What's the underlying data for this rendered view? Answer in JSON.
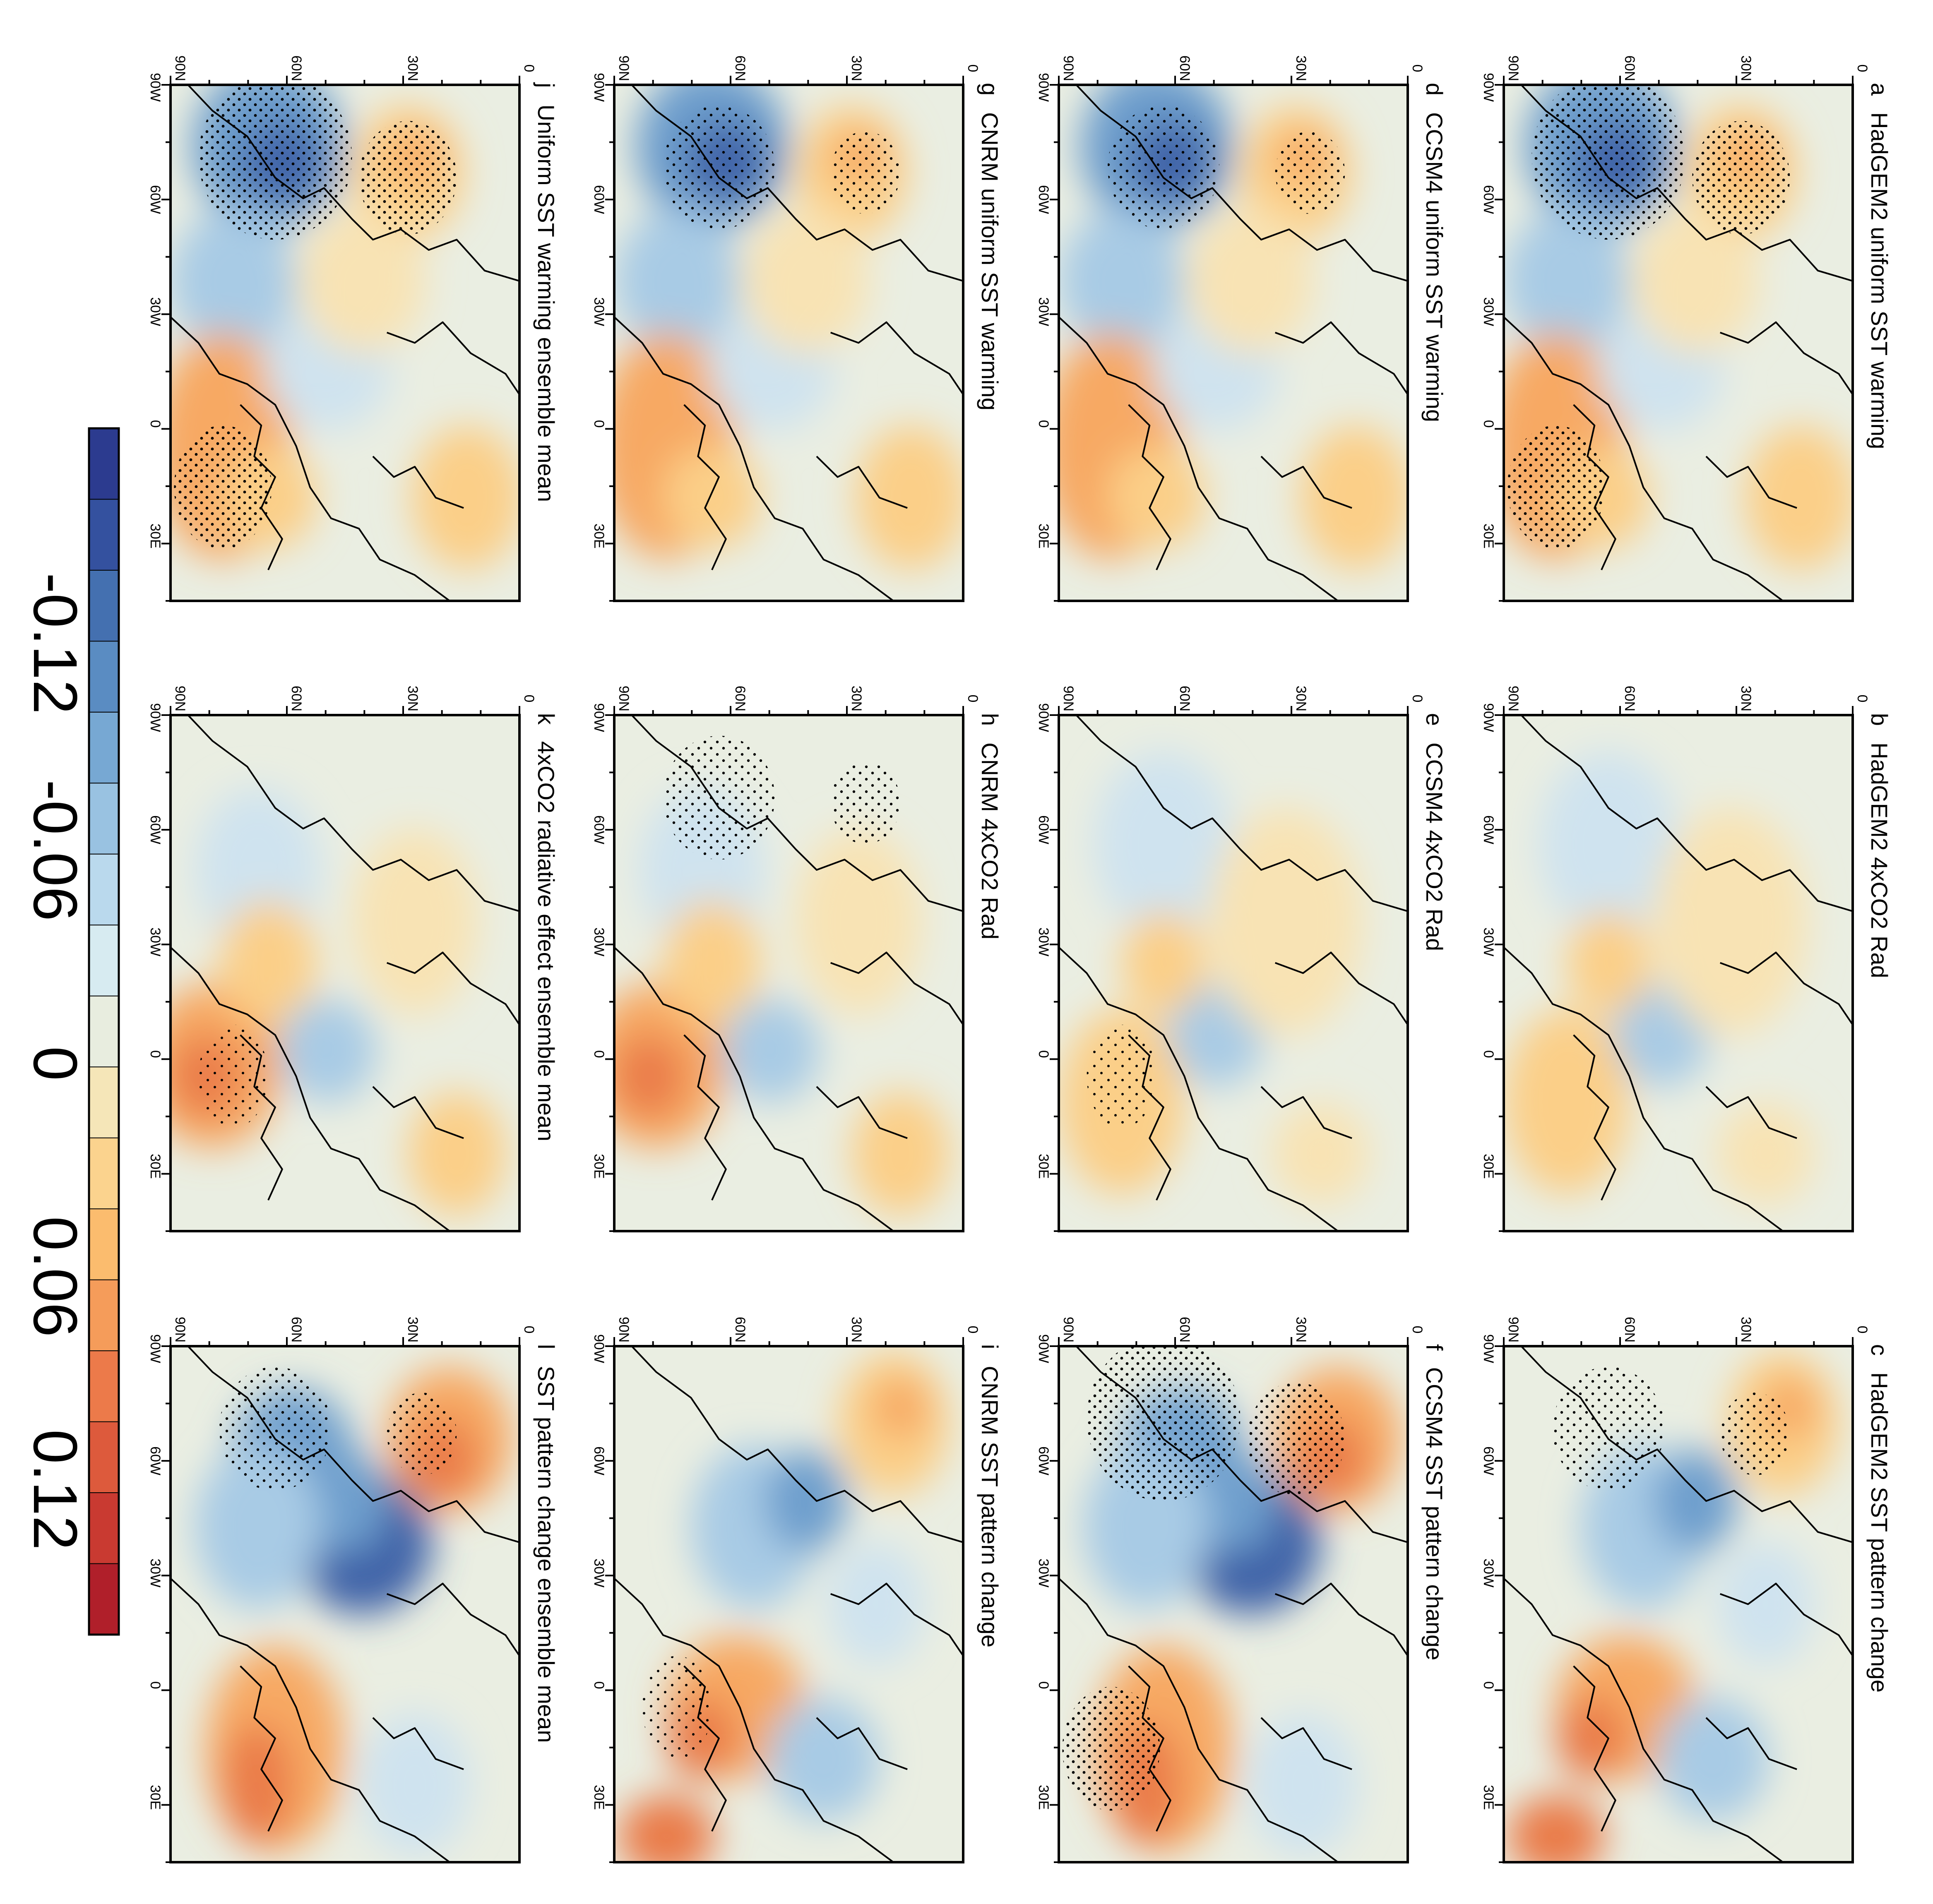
{
  "figure": {
    "orientation": "rotated 90 degrees clockwise",
    "lat_ticks": [
      "0",
      "30N",
      "60N",
      "90N"
    ],
    "lon_ticks": [
      "90W",
      "60W",
      "30W",
      "0",
      "30E"
    ]
  },
  "panels": [
    {
      "letter": "a",
      "title": "HadGEM2 uniform SST warming",
      "pattern": "A",
      "stipple": "heavy"
    },
    {
      "letter": "b",
      "title": "HadGEM2 4xCO2 Rad",
      "pattern": "B",
      "stipple": "none"
    },
    {
      "letter": "c",
      "title": "HadGEM2 SST pattern change",
      "pattern": "C",
      "stipple": "medium"
    },
    {
      "letter": "d",
      "title": "CCSM4 uniform SST warming",
      "pattern": "A",
      "stipple": "medium"
    },
    {
      "letter": "e",
      "title": "CCSM4 4xCO2 Rad",
      "pattern": "B",
      "stipple": "light"
    },
    {
      "letter": "f",
      "title": "CCSM4 SST pattern change",
      "pattern": "D",
      "stipple": "heavy"
    },
    {
      "letter": "g",
      "title": "CNRM uniform SST warming",
      "pattern": "A",
      "stipple": "medium"
    },
    {
      "letter": "h",
      "title": "CNRM 4xCO2 Rad",
      "pattern": "E",
      "stipple": "medium"
    },
    {
      "letter": "i",
      "title": "CNRM SST pattern change",
      "pattern": "C",
      "stipple": "light"
    },
    {
      "letter": "j",
      "title": "Uniform SST warming ensemble mean",
      "pattern": "A",
      "stipple": "heavy"
    },
    {
      "letter": "k",
      "title": "4xCO2 radiative effect ensemble mean",
      "pattern": "E",
      "stipple": "light"
    },
    {
      "letter": "l",
      "title": "SST pattern change ensemble mean",
      "pattern": "D",
      "stipple": "medium"
    }
  ],
  "colorbar": {
    "labels": [
      "-0.12",
      "-0.06",
      "0",
      "0.06",
      "0.12"
    ],
    "colors": [
      "#2c3b8f",
      "#34519f",
      "#4470b0",
      "#5a8cc2",
      "#77a8d3",
      "#99c2e1",
      "#bad9ed",
      "#d7ebf1",
      "#e8eddf",
      "#f5e6b8",
      "#fbd38e",
      "#fbbc6e",
      "#f59c5a",
      "#ec7a4a",
      "#dd5a3c",
      "#c93a31",
      "#b01f2a"
    ]
  },
  "palette": {
    "neutral": "#eaeee2",
    "pale_blue": "#cfe3ef",
    "light_blue": "#a8cbe5",
    "mid_blue": "#6e9fcd",
    "deep_blue": "#3f63a8",
    "pale_orange": "#f8e3b4",
    "light_orange": "#fbcf88",
    "mid_orange": "#f7a964",
    "red_orange": "#ea7b4a",
    "coast": "#000000"
  }
}
